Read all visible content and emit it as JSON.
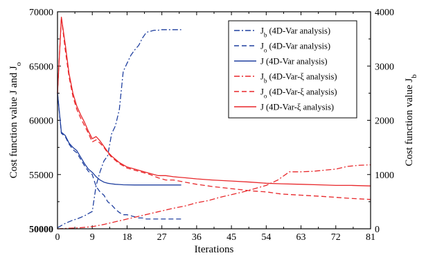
{
  "chart_data": {
    "type": "line",
    "xlabel": "Iterations",
    "ylabel_left": "Cost function value J and J",
    "ylabel_left_sub": "o",
    "ylabel_right": "Cost function value J",
    "ylabel_right_sub": "b",
    "xlim": [
      0,
      81
    ],
    "ylim_left": [
      50000,
      70000
    ],
    "ylim_right": [
      0,
      4000
    ],
    "x_ticks": [
      0,
      9,
      18,
      27,
      36,
      45,
      54,
      63,
      72,
      81
    ],
    "y_left_ticks": [
      50000,
      55000,
      60000,
      65000,
      70000
    ],
    "y_right_ticks": [
      0,
      1000,
      2000,
      3000,
      4000
    ],
    "legend_position": "top-right",
    "series": [
      {
        "name": "J (4D-Var analysis)",
        "legend_main": "J",
        "legend_sub": "b",
        "legend_suffix": "(4D-Var analysis)",
        "axis": "right",
        "color": "#1f3f9f",
        "dash": "dashdot",
        "x": [
          0,
          1,
          2,
          3,
          4,
          5,
          6,
          7,
          8,
          9,
          10,
          11,
          12,
          13,
          14,
          15,
          16,
          17,
          18,
          19,
          20,
          21,
          22,
          23,
          24,
          25,
          26,
          27,
          28,
          29,
          30,
          31,
          32
        ],
        "y": [
          20,
          60,
          100,
          130,
          160,
          180,
          210,
          240,
          280,
          320,
          800,
          1050,
          1250,
          1350,
          1750,
          1900,
          2200,
          2900,
          3050,
          3200,
          3300,
          3380,
          3520,
          3620,
          3640,
          3660,
          3660,
          3670,
          3670,
          3670,
          3670,
          3670,
          3670
        ]
      },
      {
        "name": "J (4D-Var analysis)",
        "legend_main": "J",
        "legend_sub": "o",
        "legend_suffix": "(4D-Var analysis)",
        "axis": "left",
        "color": "#1f3f9f",
        "dash": "dash",
        "x": [
          0,
          1,
          2,
          3,
          4,
          5,
          6,
          7,
          8,
          9,
          10,
          11,
          12,
          13,
          14,
          15,
          16,
          17,
          18,
          19,
          20,
          21,
          22,
          23,
          24,
          25,
          26,
          27,
          28,
          29,
          30,
          31,
          32
        ],
        "y": [
          62500,
          58800,
          58500,
          57800,
          57300,
          57000,
          56400,
          55800,
          55300,
          55000,
          53900,
          53400,
          53100,
          52500,
          52200,
          51800,
          51500,
          51300,
          51300,
          51200,
          51100,
          51000,
          51000,
          50900,
          50900,
          50900,
          50900,
          50900,
          50900,
          50900,
          50900,
          50900,
          50900
        ]
      },
      {
        "name": "J (4D-Var analysis)",
        "legend_main": "J",
        "legend_sub": "",
        "legend_suffix": "  (4D-Var analysis)",
        "axis": "left",
        "color": "#1f3f9f",
        "dash": "solid",
        "x": [
          0,
          1,
          2,
          3,
          4,
          5,
          6,
          7,
          8,
          9,
          10,
          11,
          12,
          13,
          14,
          15,
          16,
          17,
          18,
          20,
          22,
          24,
          26,
          28,
          30,
          32
        ],
        "y": [
          62500,
          58900,
          58600,
          57900,
          57500,
          57200,
          56600,
          56000,
          55500,
          55200,
          54800,
          54500,
          54300,
          54200,
          54150,
          54100,
          54080,
          54060,
          54050,
          54040,
          54040,
          54040,
          54040,
          54040,
          54040,
          54040
        ]
      },
      {
        "name": "J (4D-Var-ξ analysis)",
        "legend_main": "J",
        "legend_sub": "b",
        "legend_suffix": "(4D-Var-ξ analysis)",
        "axis": "right",
        "color": "#e8272a",
        "dash": "dashdot",
        "x": [
          0,
          3,
          6,
          9,
          12,
          15,
          18,
          21,
          24,
          27,
          30,
          33,
          36,
          39,
          42,
          45,
          48,
          51,
          54,
          57,
          60,
          63,
          66,
          69,
          72,
          75,
          78,
          81
        ],
        "y": [
          0,
          10,
          20,
          40,
          80,
          130,
          180,
          230,
          280,
          330,
          380,
          420,
          480,
          520,
          580,
          630,
          680,
          740,
          800,
          900,
          1050,
          1050,
          1060,
          1080,
          1100,
          1150,
          1170,
          1180
        ]
      },
      {
        "name": "J (4D-Var-ξ analysis)",
        "legend_main": "J",
        "legend_sub": "o",
        "legend_suffix": "(4D-Var-ξ analysis)",
        "axis": "left",
        "color": "#e8272a",
        "dash": "dash",
        "x": [
          0,
          1,
          2,
          3,
          4,
          5,
          6,
          7,
          8,
          9,
          10,
          11,
          12,
          13,
          14,
          15,
          16,
          17,
          18,
          20,
          22,
          24,
          26,
          28,
          30,
          33,
          36,
          40,
          45,
          50,
          54,
          58,
          63,
          68,
          72,
          76,
          81
        ],
        "y": [
          62500,
          69500,
          66500,
          64000,
          62200,
          61000,
          60200,
          59500,
          58800,
          58000,
          58200,
          57900,
          57500,
          57000,
          56600,
          56300,
          56000,
          55800,
          55600,
          55400,
          55200,
          55000,
          54700,
          54500,
          54500,
          54300,
          54100,
          53900,
          53700,
          53500,
          53400,
          53200,
          53100,
          53000,
          52900,
          52800,
          52700
        ]
      },
      {
        "name": "J (4D-Var-ξ analysis)",
        "legend_main": "J",
        "legend_sub": "",
        "legend_suffix": "  (4D-Var-ξ analysis)",
        "axis": "left",
        "color": "#e8272a",
        "dash": "solid",
        "x": [
          0,
          1,
          2,
          3,
          4,
          5,
          6,
          7,
          8,
          9,
          10,
          11,
          12,
          13,
          14,
          15,
          16,
          17,
          18,
          20,
          22,
          24,
          26,
          28,
          30,
          33,
          36,
          40,
          45,
          50,
          54,
          58,
          63,
          68,
          72,
          76,
          81
        ],
        "y": [
          62500,
          69500,
          67000,
          64300,
          62500,
          61300,
          60500,
          59800,
          59000,
          58300,
          58500,
          58100,
          57600,
          57100,
          56700,
          56400,
          56100,
          55900,
          55700,
          55500,
          55300,
          55100,
          54900,
          54900,
          54800,
          54700,
          54600,
          54500,
          54400,
          54300,
          54200,
          54150,
          54100,
          54050,
          54000,
          54000,
          53950
        ]
      }
    ]
  }
}
